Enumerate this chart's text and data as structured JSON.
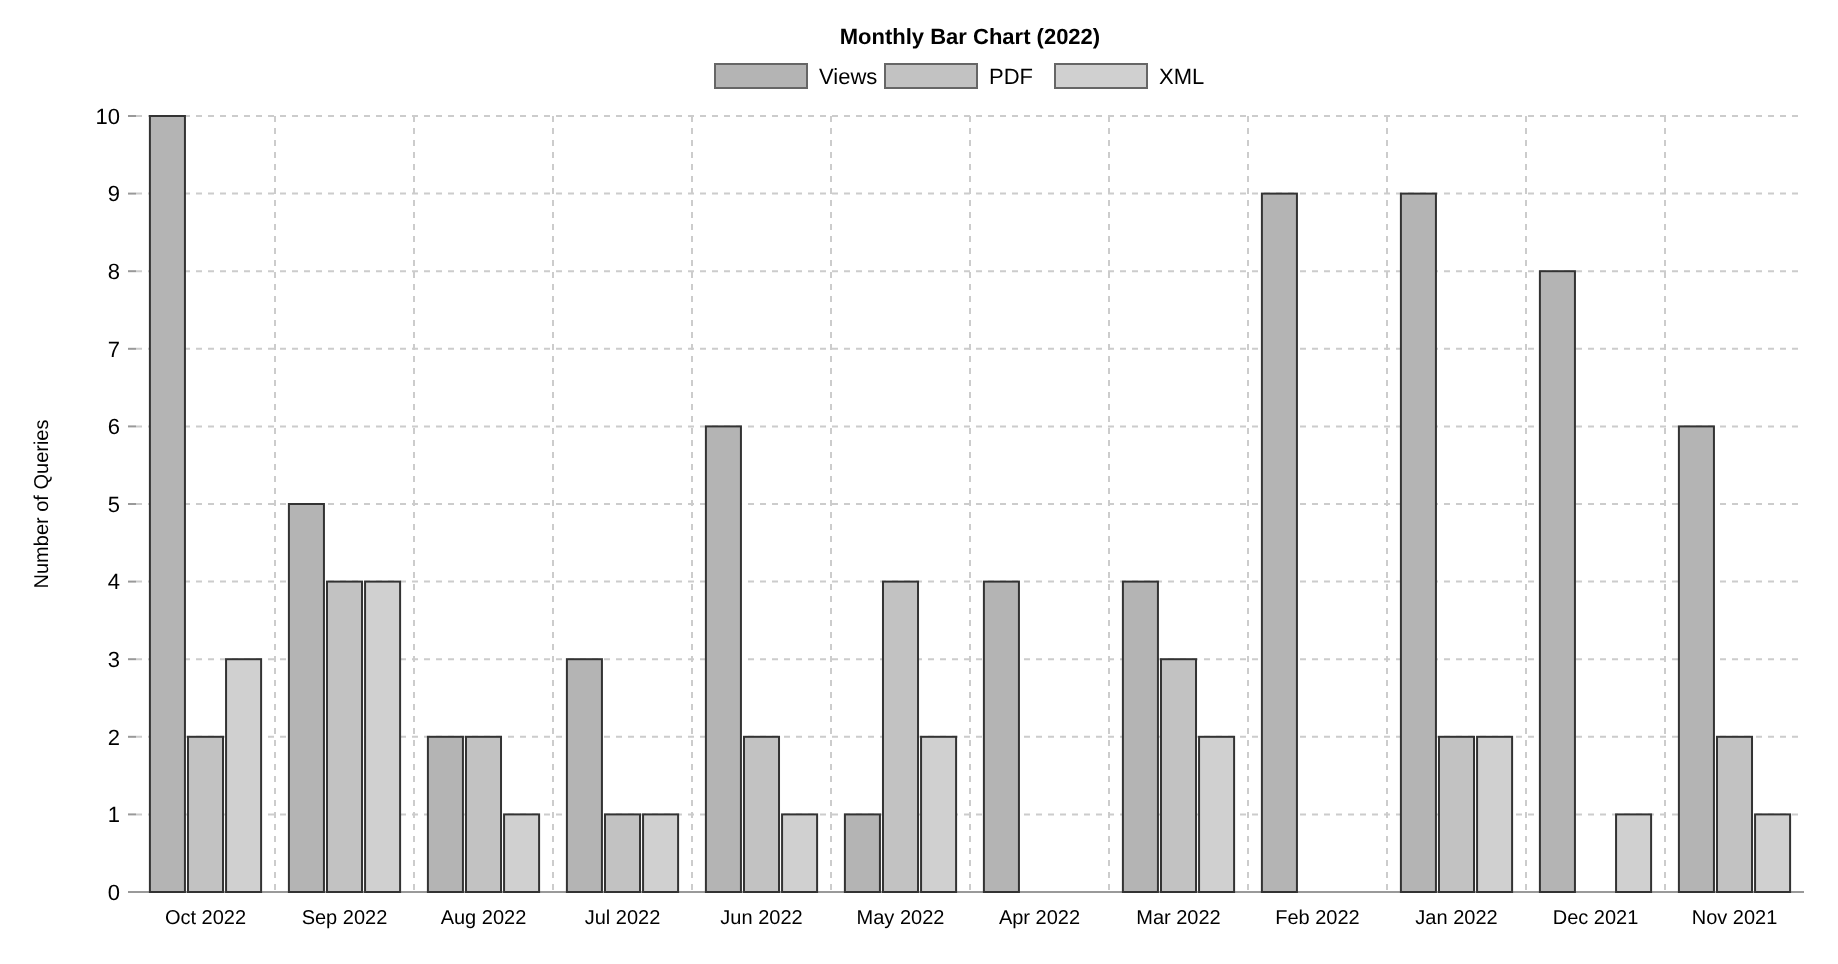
{
  "chart_data": {
    "type": "bar",
    "title": "Monthly Bar Chart (2022)",
    "ylabel": "Number of Queries",
    "categories": [
      "Oct 2022",
      "Sep 2022",
      "Aug 2022",
      "Jul 2022",
      "Jun 2022",
      "May 2022",
      "Apr 2022",
      "Mar 2022",
      "Feb 2022",
      "Jan 2022",
      "Dec 2021",
      "Nov 2021"
    ],
    "series": [
      {
        "name": "Views",
        "color": "#b4b4b4",
        "values": [
          10,
          5,
          2,
          3,
          6,
          1,
          4,
          4,
          9,
          9,
          8,
          6
        ]
      },
      {
        "name": "PDF",
        "color": "#c2c2c2",
        "values": [
          2,
          4,
          2,
          1,
          2,
          4,
          0,
          3,
          0,
          2,
          0,
          2
        ]
      },
      {
        "name": "XML",
        "color": "#d0d0d0",
        "values": [
          3,
          4,
          1,
          1,
          1,
          2,
          0,
          2,
          0,
          2,
          1,
          1
        ]
      }
    ],
    "ylim": [
      0,
      10
    ],
    "yticks": [
      0,
      1,
      2,
      3,
      4,
      5,
      6,
      7,
      8,
      9,
      10
    ],
    "grid": true,
    "legend": "top"
  }
}
